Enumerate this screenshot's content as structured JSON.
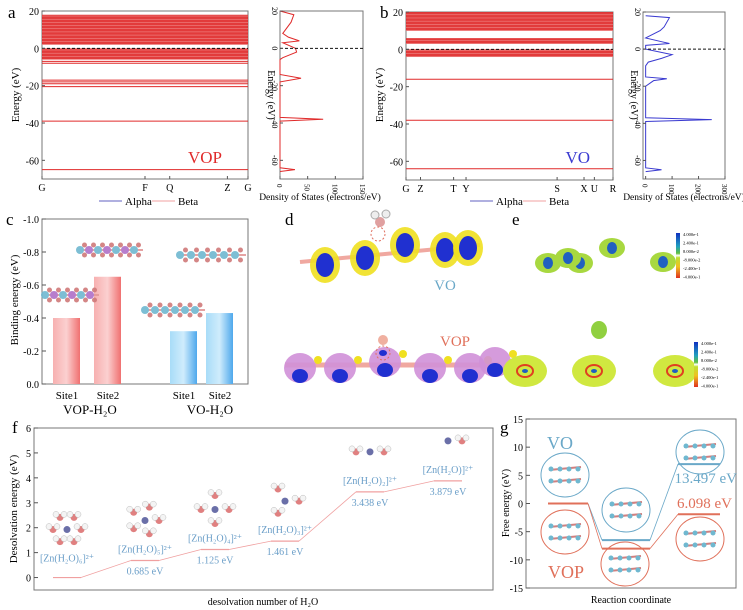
{
  "colors": {
    "vop_red": "#e02a2a",
    "vo_blue": "#3a3ad0",
    "vop_bar": "#f58a8a",
    "vo_bar": "#6cbcf0",
    "desolv_line": "#f0a0a0",
    "desolv_label": "#6a9ec8",
    "g_vo": "#6aa8c8",
    "g_vop": "#e0705a"
  },
  "chart_data": [
    {
      "panel": "a",
      "type": "line",
      "subtype": "band_structure",
      "ylabel": "Energy (eV)",
      "ylim": [
        -70,
        20
      ],
      "yticks": [
        20,
        0,
        -20,
        -40,
        -60
      ],
      "xticks": [
        "G",
        "F",
        "Q",
        "Z",
        "G"
      ],
      "material_label": "VOP",
      "legend": [
        "Alpha",
        "Beta"
      ],
      "bands_eV": {
        "continuous_ranges": [
          [
            2,
            18
          ],
          [
            -6,
            0
          ]
        ],
        "discrete_levels": [
          -7,
          -8,
          -17,
          -18,
          -19,
          -20.5,
          -39,
          -65
        ]
      },
      "fermi_level": 0
    },
    {
      "panel": "a-dos",
      "type": "line",
      "xlabel": "Density of States (electrons/eV)",
      "ylabel": "Energy (eV)",
      "xlim": [
        0,
        150
      ],
      "xticks": [
        0,
        50,
        100,
        150
      ],
      "ylim": [
        -70,
        20
      ],
      "yticks": [
        20,
        0,
        -20,
        -40,
        -60
      ],
      "series": [
        {
          "name": "DOS",
          "points": [
            [
              0,
              20
            ],
            [
              25,
              18
            ],
            [
              20,
              14
            ],
            [
              5,
              8
            ],
            [
              15,
              6
            ],
            [
              35,
              4
            ],
            [
              5,
              3
            ],
            [
              28,
              0
            ],
            [
              30,
              -2
            ],
            [
              5,
              -5
            ],
            [
              0,
              -6
            ],
            [
              0,
              -14
            ],
            [
              38,
              -16
            ],
            [
              0,
              -18
            ],
            [
              0,
              -37
            ],
            [
              78,
              -38
            ],
            [
              0,
              -39
            ],
            [
              0,
              -64
            ],
            [
              27,
              -65
            ],
            [
              0,
              -66
            ]
          ]
        }
      ]
    },
    {
      "panel": "b",
      "type": "line",
      "subtype": "band_structure",
      "ylabel": "Energy (eV)",
      "ylim": [
        -70,
        20
      ],
      "yticks": [
        20,
        0,
        -20,
        -40,
        -60
      ],
      "xticks": [
        "G",
        "Z",
        "T",
        "Y",
        "S",
        "X",
        "U",
        "R"
      ],
      "material_label": "VO",
      "legend": [
        "Alpha",
        "Beta"
      ],
      "bands_eV": {
        "continuous_ranges": [
          [
            10,
            20
          ],
          [
            3,
            6
          ],
          [
            -4,
            0
          ]
        ],
        "discrete_levels": [
          -16,
          -38,
          -64
        ]
      },
      "fermi_level": 0
    },
    {
      "panel": "b-dos",
      "type": "line",
      "xlabel": "Density of States (electrons/eV)",
      "ylabel": "Energy (eV)",
      "xlim": [
        -10,
        300
      ],
      "xticks": [
        0,
        100,
        200,
        300
      ],
      "ylim": [
        -70,
        20
      ],
      "yticks": [
        20,
        0,
        -20,
        -40,
        -60
      ],
      "series": [
        {
          "name": "DOS",
          "points": [
            [
              0,
              18
            ],
            [
              90,
              17
            ],
            [
              70,
              12
            ],
            [
              55,
              10
            ],
            [
              0,
              6
            ],
            [
              60,
              4
            ],
            [
              90,
              3
            ],
            [
              0,
              2
            ],
            [
              0,
              0
            ],
            [
              100,
              -3
            ],
            [
              60,
              -5
            ],
            [
              10,
              -7
            ],
            [
              0,
              -9
            ],
            [
              0,
              -15
            ],
            [
              80,
              -16
            ],
            [
              30,
              -17
            ],
            [
              0,
              -20
            ],
            [
              0,
              -37
            ],
            [
              250,
              -38
            ],
            [
              0,
              -39
            ],
            [
              0,
              -64
            ],
            [
              60,
              -65
            ],
            [
              0,
              -66
            ]
          ]
        }
      ]
    },
    {
      "panel": "c",
      "type": "bar",
      "ylabel": "Binding energy (eV)",
      "ylim": [
        0.0,
        -1.0
      ],
      "yticks": [
        "-1.0",
        "-0.8",
        "-0.6",
        "-0.4",
        "-0.2",
        "0.0"
      ],
      "groups": [
        "VOP-H₂O",
        "VO-H₂O"
      ],
      "categories": [
        "Site1",
        "Site2",
        "Site1",
        "Site2"
      ],
      "series": [
        {
          "name": "VOP-H₂O",
          "values": [
            -0.4,
            -0.65
          ]
        },
        {
          "name": "VO-H₂O",
          "values": [
            -0.32,
            -0.43
          ]
        }
      ]
    },
    {
      "panel": "f",
      "type": "line",
      "xlabel": "desolvation number of H₂O",
      "ylabel": "Desolvation energy (eV)",
      "ylim": [
        -0.5,
        6
      ],
      "yticks": [
        0,
        1,
        2,
        3,
        4,
        5,
        6
      ],
      "steps": [
        {
          "species": "[Zn(H₂O)₆]²⁺",
          "energy": 0.0,
          "label": ""
        },
        {
          "species": "[Zn(H₂O)₅]²⁺",
          "energy": 0.685,
          "label": "0.685 eV"
        },
        {
          "species": "[Zn(H₂O)₄]²⁺",
          "energy": 1.125,
          "label": "1.125 eV"
        },
        {
          "species": "[Zn(H₂O)₃]²⁺",
          "energy": 1.461,
          "label": "1.461 eV"
        },
        {
          "species": "[Zn(H₂O)₂]²⁺",
          "energy": 3.438,
          "label": "3.438 eV"
        },
        {
          "species": "[Zn(H₂O)]²⁺",
          "energy": 3.879,
          "label": "3.879 eV"
        }
      ]
    },
    {
      "panel": "g",
      "type": "line",
      "xlabel": "Reaction coordinate",
      "ylabel": "Free energy (eV)",
      "ylim": [
        -15,
        15
      ],
      "yticks": [
        15,
        10,
        5,
        0,
        -5,
        -10,
        -15
      ],
      "series": [
        {
          "name": "VO",
          "values": [
            0,
            -6.5,
            7.0
          ],
          "barrier_label": "13.497 eV"
        },
        {
          "name": "VOP",
          "values": [
            0,
            -8.0,
            -1.9
          ],
          "barrier_label": "6.098 eV"
        }
      ]
    }
  ],
  "panels": {
    "a": "a",
    "b": "b",
    "c": "c",
    "d": "d",
    "e": "e",
    "f": "f",
    "g": "g"
  },
  "panel_d": {
    "vo_label": "VO",
    "vop_label": "VOP"
  },
  "panel_e": {
    "colorbar_ticks": [
      "4.000e-1",
      "2.400e-1",
      "8.000e-2",
      "-8.000e-2",
      "-2.400e-1",
      "-4.000e-1"
    ]
  },
  "panel_g": {
    "vo_label": "VO",
    "vop_label": "VOP"
  }
}
